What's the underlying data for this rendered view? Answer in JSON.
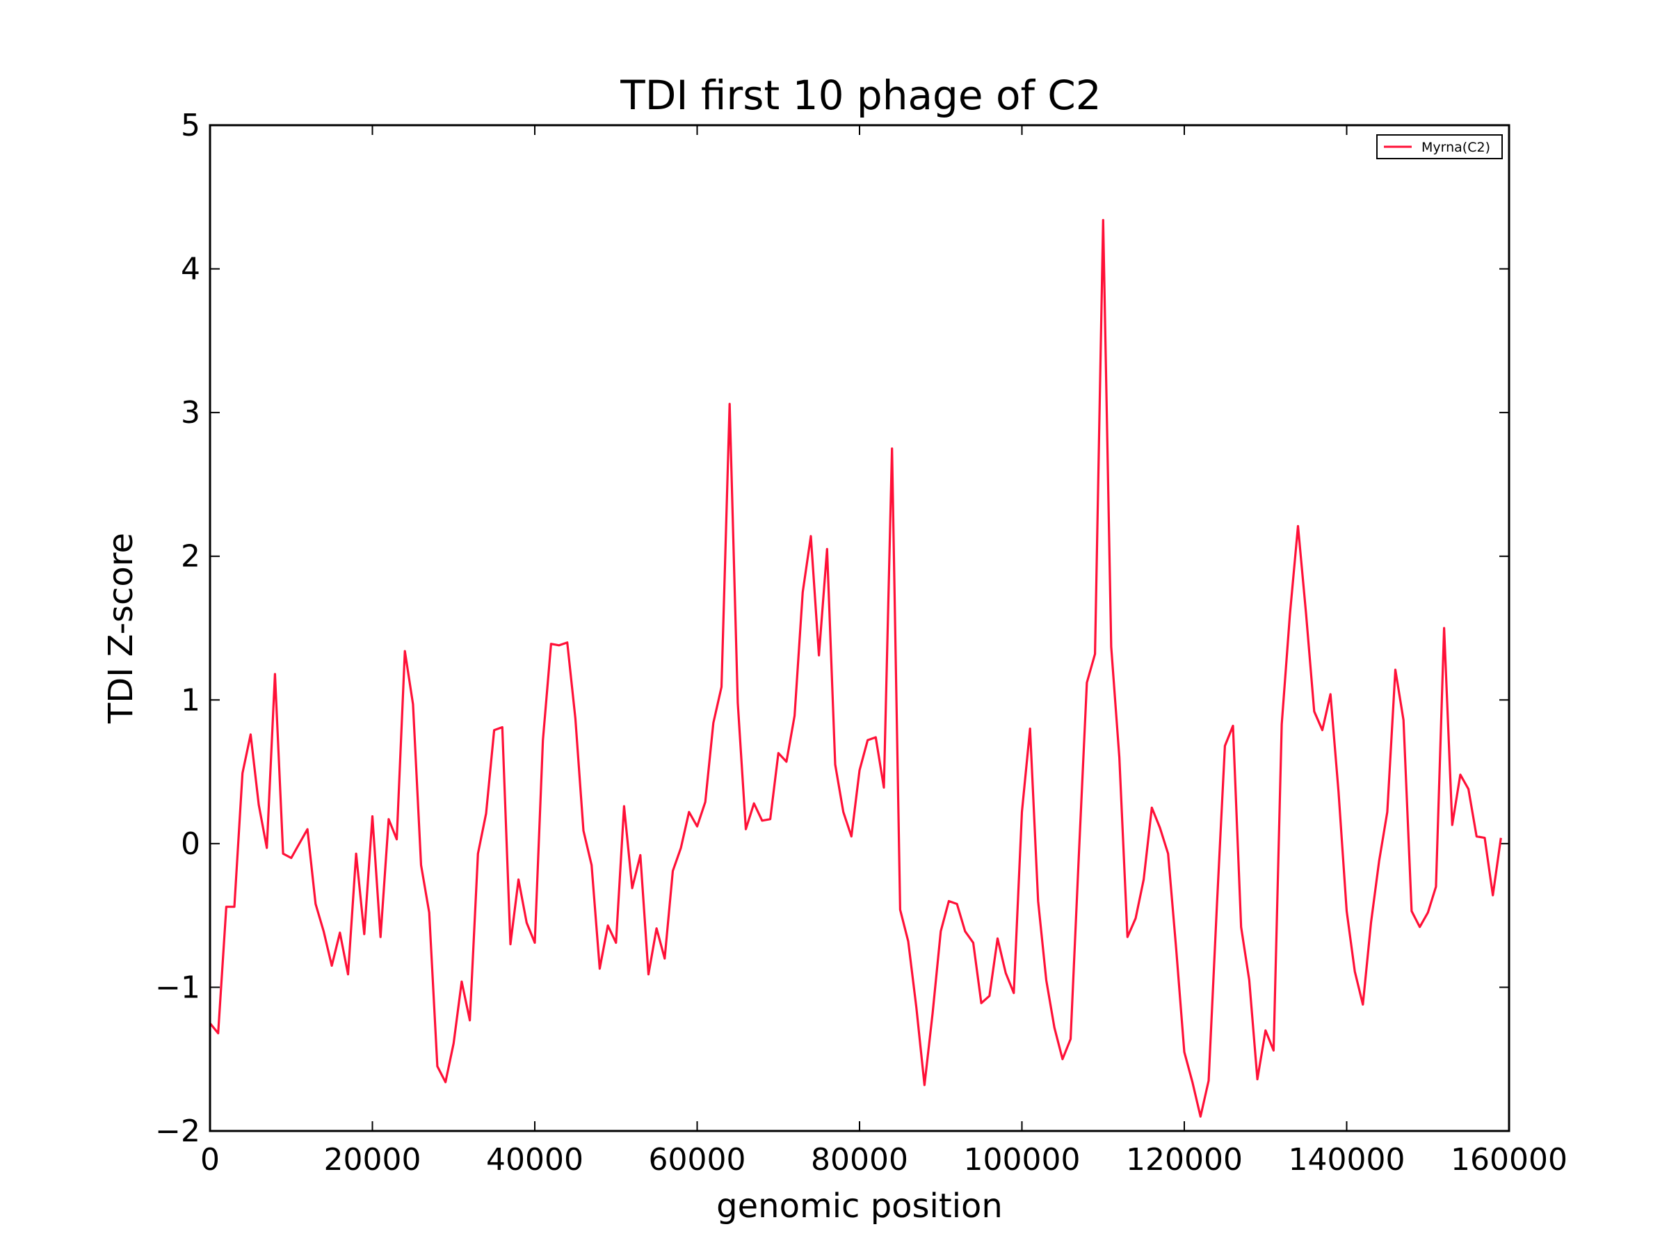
{
  "chart_data": {
    "type": "line",
    "title": "TDI first 10 phage of C2",
    "xlabel": "genomic position",
    "ylabel": "TDI Z-score",
    "xlim": [
      0,
      160000
    ],
    "ylim": [
      -2,
      5
    ],
    "xticks": [
      0,
      20000,
      40000,
      60000,
      80000,
      100000,
      120000,
      140000,
      160000
    ],
    "xtick_labels": [
      "0",
      "20000",
      "40000",
      "60000",
      "80000",
      "100000",
      "120000",
      "140000",
      "160000"
    ],
    "yticks": [
      -2,
      -1,
      0,
      1,
      2,
      3,
      4,
      5
    ],
    "ytick_labels": [
      "−2",
      "−1",
      "0",
      "1",
      "2",
      "3",
      "4",
      "5"
    ],
    "grid": false,
    "legend_position": "top-right",
    "series": [
      {
        "name": "Myrna(C2)",
        "color": "#ff1037",
        "x": [
          0,
          1000,
          2000,
          3000,
          4000,
          5000,
          6000,
          7000,
          8000,
          9000,
          10000,
          11000,
          12000,
          13000,
          14000,
          15000,
          16000,
          17000,
          18000,
          19000,
          20000,
          21000,
          22000,
          23000,
          24000,
          25000,
          26000,
          27000,
          28000,
          29000,
          30000,
          31000,
          32000,
          33000,
          34000,
          35000,
          36000,
          37000,
          38000,
          39000,
          40000,
          41000,
          42000,
          43000,
          44000,
          45000,
          46000,
          47000,
          48000,
          49000,
          50000,
          51000,
          52000,
          53000,
          54000,
          55000,
          56000,
          57000,
          58000,
          59000,
          60000,
          61000,
          62000,
          63000,
          64000,
          65000,
          66000,
          67000,
          68000,
          69000,
          70000,
          71000,
          72000,
          73000,
          74000,
          75000,
          76000,
          77000,
          78000,
          79000,
          80000,
          81000,
          82000,
          83000,
          84000,
          85000,
          86000,
          87000,
          88000,
          89000,
          90000,
          91000,
          92000,
          93000,
          94000,
          95000,
          96000,
          97000,
          98000,
          99000,
          100000,
          101000,
          102000,
          103000,
          104000,
          105000,
          106000,
          107000,
          108000,
          109000,
          110000,
          111000,
          112000,
          113000,
          114000,
          115000,
          116000,
          117000,
          118000,
          119000,
          120000,
          121000,
          122000,
          123000,
          124000,
          125000,
          126000,
          127000,
          128000,
          129000,
          130000,
          131000,
          132000,
          133000,
          134000,
          135000,
          136000,
          137000,
          138000,
          139000,
          140000,
          141000,
          142000,
          143000,
          144000,
          145000,
          146000,
          147000,
          148000,
          149000,
          150000,
          151000,
          152000,
          153000,
          154000,
          155000,
          156000,
          157000,
          158000,
          159000
        ],
        "y": [
          -1.25,
          -1.32,
          -0.44,
          -0.44,
          0.49,
          0.76,
          0.27,
          -0.03,
          1.18,
          -0.07,
          -0.1,
          0.0,
          0.1,
          -0.42,
          -0.61,
          -0.85,
          -0.62,
          -0.91,
          -0.07,
          -0.63,
          0.19,
          -0.65,
          0.17,
          0.03,
          1.34,
          0.97,
          -0.15,
          -0.48,
          -1.55,
          -1.66,
          -1.39,
          -0.96,
          -1.23,
          -0.07,
          0.21,
          0.79,
          0.81,
          -0.7,
          -0.25,
          -0.55,
          -0.69,
          0.72,
          1.39,
          1.38,
          1.4,
          0.87,
          0.09,
          -0.15,
          -0.87,
          -0.57,
          -0.69,
          0.26,
          -0.31,
          -0.08,
          -0.91,
          -0.59,
          -0.8,
          -0.19,
          -0.03,
          0.22,
          0.12,
          0.29,
          0.84,
          1.09,
          3.06,
          0.98,
          0.1,
          0.28,
          0.16,
          0.17,
          0.63,
          0.57,
          0.89,
          1.75,
          2.14,
          1.31,
          2.05,
          0.55,
          0.22,
          0.05,
          0.51,
          0.72,
          0.74,
          0.39,
          2.75,
          -0.46,
          -0.68,
          -1.14,
          -1.68,
          -1.18,
          -0.61,
          -0.4,
          -0.42,
          -0.61,
          -0.69,
          -1.11,
          -1.06,
          -0.66,
          -0.9,
          -1.04,
          0.22,
          0.8,
          -0.4,
          -0.95,
          -1.28,
          -1.5,
          -1.36,
          -0.1,
          1.12,
          1.32,
          4.34,
          1.37,
          0.6,
          -0.65,
          -0.52,
          -0.25,
          0.25,
          0.11,
          -0.07,
          -0.73,
          -1.45,
          -1.66,
          -1.9,
          -1.65,
          -0.45,
          0.68,
          0.82,
          -0.58,
          -0.95,
          -1.64,
          -1.3,
          -1.44,
          0.83,
          1.59,
          2.21,
          1.6,
          0.92,
          0.79,
          1.04,
          0.36,
          -0.47,
          -0.89,
          -1.12,
          -0.55,
          -0.12,
          0.22,
          1.21,
          0.86,
          -0.47,
          -0.58,
          -0.48,
          -0.3,
          1.5,
          0.13,
          0.48,
          0.38,
          0.05,
          0.04,
          -0.36,
          0.04
        ]
      }
    ]
  }
}
